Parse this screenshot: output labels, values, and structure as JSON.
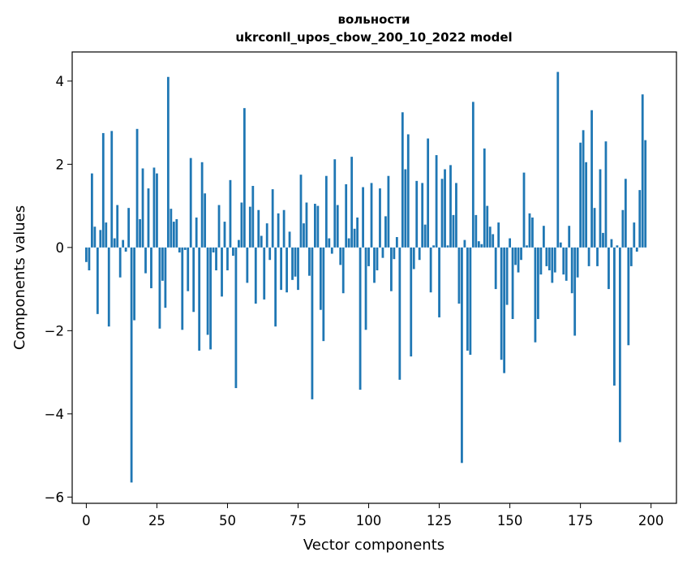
{
  "chart_data": {
    "type": "bar",
    "title_line1": "вольности",
    "title_line2": "ukrconll_upos_cbow_200_10_2022 model",
    "xlabel": "Vector components",
    "ylabel": "Components values",
    "xlim": [
      -5,
      209
    ],
    "ylim": [
      -6.15,
      4.7
    ],
    "xticks": [
      0,
      25,
      50,
      75,
      100,
      125,
      150,
      175,
      200
    ],
    "yticks": [
      -6,
      -4,
      -2,
      0,
      2,
      4
    ],
    "ytick_labels": [
      "−6",
      "−4",
      "−2",
      "0",
      "2",
      "4"
    ],
    "bar_color": "#1f77b4",
    "values": [
      -0.35,
      -0.55,
      1.78,
      0.5,
      -1.6,
      0.42,
      2.75,
      0.6,
      -1.9,
      2.8,
      0.22,
      1.02,
      -0.72,
      0.18,
      -0.1,
      0.95,
      -5.65,
      -1.75,
      2.85,
      0.68,
      1.9,
      -0.62,
      1.42,
      -0.98,
      1.92,
      1.78,
      -1.95,
      -0.8,
      -1.45,
      4.1,
      0.93,
      0.62,
      0.68,
      -0.12,
      -1.98,
      -0.06,
      -1.05,
      2.15,
      -1.55,
      0.72,
      -2.48,
      2.05,
      1.3,
      -2.1,
      -2.45,
      -0.12,
      -0.55,
      1.02,
      -1.18,
      0.62,
      -0.55,
      1.62,
      -0.2,
      -3.38,
      0.18,
      1.08,
      3.35,
      -0.85,
      0.98,
      1.48,
      -1.35,
      0.9,
      0.28,
      -1.25,
      0.58,
      -0.3,
      1.4,
      -1.9,
      0.82,
      -1.02,
      0.9,
      -1.08,
      0.38,
      -0.78,
      -0.7,
      -1.02,
      1.75,
      0.58,
      1.08,
      -0.68,
      -3.65,
      1.05,
      1.0,
      -1.5,
      -2.25,
      1.72,
      0.22,
      -0.15,
      2.12,
      1.02,
      -0.42,
      -1.1,
      1.52,
      0.22,
      2.18,
      0.45,
      0.72,
      -3.42,
      1.45,
      -1.98,
      -0.45,
      1.55,
      -0.85,
      -0.55,
      1.42,
      -0.25,
      0.75,
      1.72,
      -1.05,
      -0.28,
      0.25,
      -3.18,
      3.25,
      1.88,
      2.72,
      -2.62,
      -0.52,
      1.6,
      -0.3,
      1.55,
      0.55,
      2.62,
      -1.08,
      0.05,
      2.22,
      -1.68,
      1.65,
      1.88,
      0.05,
      1.98,
      0.78,
      1.55,
      -1.35,
      -5.18,
      0.18,
      -2.48,
      -2.58,
      3.5,
      0.78,
      0.15,
      0.08,
      2.38,
      1.0,
      0.5,
      0.32,
      -1.0,
      0.6,
      -2.7,
      -3.02,
      -1.38,
      0.22,
      -1.72,
      -0.42,
      -0.6,
      -0.3,
      1.8,
      0.05,
      0.82,
      0.72,
      -2.28,
      -1.72,
      -0.65,
      0.52,
      -0.45,
      -0.55,
      -0.85,
      -0.6,
      4.22,
      0.12,
      -0.65,
      -0.8,
      0.52,
      -1.1,
      -2.12,
      -0.72,
      2.52,
      2.82,
      2.05,
      -0.45,
      3.3,
      0.95,
      -0.45,
      1.88,
      0.35,
      2.55,
      -1.0,
      0.2,
      -3.32,
      0.05,
      -4.68,
      0.9,
      1.65,
      -2.35,
      -0.45,
      0.6,
      -0.1,
      1.38,
      3.68,
      2.58
    ]
  }
}
